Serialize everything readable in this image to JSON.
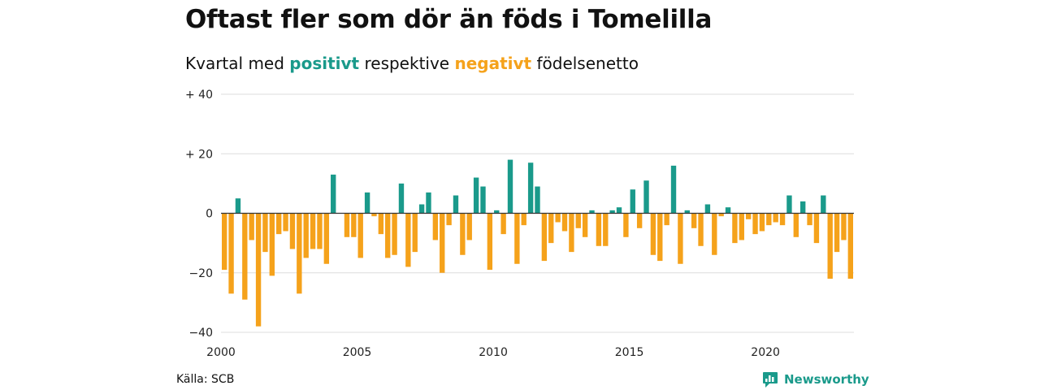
{
  "chart_data": {
    "type": "bar",
    "title": "Oftast fler som dör än föds i Tomelilla",
    "subtitle": {
      "prefix": "Kvartal med ",
      "positive": "positivt",
      "middle": " respektive ",
      "negative": "negativt",
      "suffix": " födelsenetto"
    },
    "x_start": 2000,
    "x_end": 2023.25,
    "x_ticks": [
      2000,
      2005,
      2010,
      2015,
      2020
    ],
    "y_ticks": [
      {
        "value": 40,
        "label": "+ 40"
      },
      {
        "value": 20,
        "label": "+ 20"
      },
      {
        "value": 0,
        "label": "0"
      },
      {
        "value": -20,
        "label": "−20"
      },
      {
        "value": -40,
        "label": "−40"
      }
    ],
    "ylim": [
      -40,
      40
    ],
    "grid": true,
    "colors": {
      "positive": "#1a9a8b",
      "negative": "#f5a21b",
      "grid": "#dddddd",
      "zero": "#333333"
    },
    "period": "quarterly, 2000 Q1 – 2023 Q1",
    "values": [
      -19,
      -27,
      5,
      -29,
      -9,
      -38,
      -13,
      -21,
      -7,
      -6,
      -12,
      -27,
      -15,
      -12,
      -12,
      -17,
      13,
      0,
      -8,
      -8,
      -15,
      7,
      -1,
      -7,
      -15,
      -14,
      10,
      -18,
      -13,
      3,
      7,
      -9,
      -20,
      -4,
      6,
      -14,
      -9,
      12,
      9,
      -19,
      1,
      -7,
      18,
      -17,
      -4,
      17,
      9,
      -16,
      -10,
      -3,
      -6,
      -13,
      -5,
      -8,
      1,
      -11,
      -11,
      1,
      2,
      -8,
      8,
      -5,
      11,
      -14,
      -16,
      -4,
      16,
      -17,
      1,
      -5,
      -11,
      3,
      -14,
      -1,
      2,
      -10,
      -9,
      -2,
      -7,
      -6,
      -4,
      -3,
      -4,
      6,
      -8,
      4,
      -4,
      -10,
      6,
      -22,
      -13,
      -9,
      -22
    ]
  },
  "source": "Källa: SCB",
  "logo": {
    "icon": "newsworthy-chart-icon",
    "text": "Newsworthy"
  }
}
